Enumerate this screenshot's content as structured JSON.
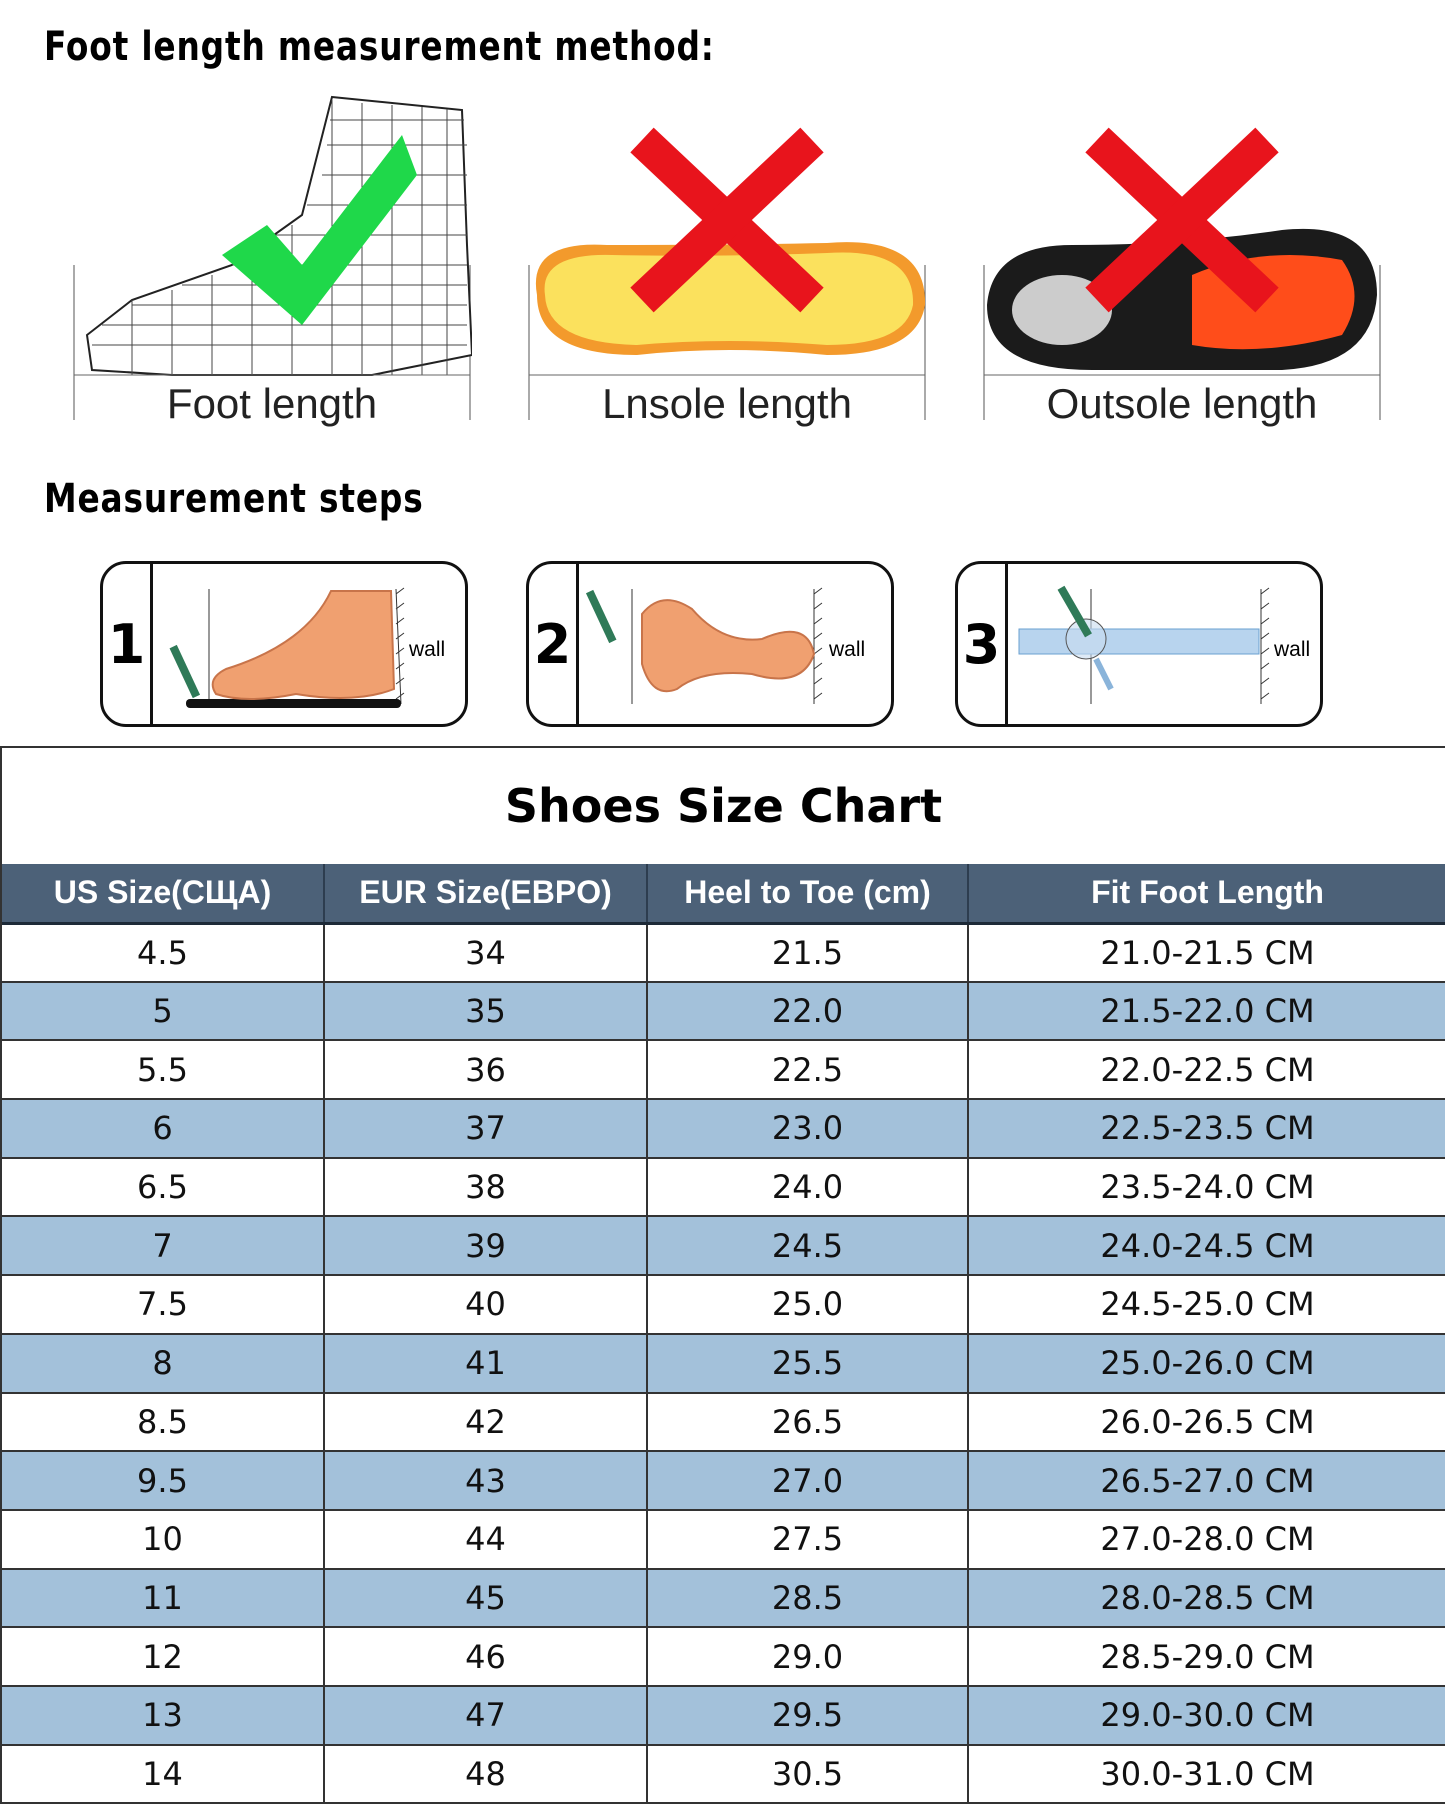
{
  "method_title": "Foot length measurement method:",
  "methods": [
    {
      "label": "Foot length",
      "mark": "check-icon",
      "mark_color": "#1fd84a"
    },
    {
      "label": "Lnsole length",
      "mark": "cross-icon",
      "mark_color": "#e8141c"
    },
    {
      "label": "Outsole length",
      "mark": "cross-icon",
      "mark_color": "#e8141c"
    }
  ],
  "steps_title": "Measurement steps",
  "steps": [
    {
      "number": "1",
      "wall": "wall"
    },
    {
      "number": "2",
      "wall": "wall"
    },
    {
      "number": "3",
      "wall": "wall"
    }
  ],
  "chart": {
    "title": "Shoes Size Chart",
    "headers": [
      "US Size(СЩA)",
      "EUR Size(EBPO)",
      "Heel to Toe (cm)",
      "Fit Foot Length"
    ],
    "rows": [
      [
        "4.5",
        "34",
        "21.5",
        "21.0-21.5 CM"
      ],
      [
        "5",
        "35",
        "22.0",
        "21.5-22.0 CM"
      ],
      [
        "5.5",
        "36",
        "22.5",
        "22.0-22.5 CM"
      ],
      [
        "6",
        "37",
        "23.0",
        "22.5-23.5 CM"
      ],
      [
        "6.5",
        "38",
        "24.0",
        "23.5-24.0 CM"
      ],
      [
        "7",
        "39",
        "24.5",
        "24.0-24.5 CM"
      ],
      [
        "7.5",
        "40",
        "25.0",
        "24.5-25.0 CM"
      ],
      [
        "8",
        "41",
        "25.5",
        "25.0-26.0 CM"
      ],
      [
        "8.5",
        "42",
        "26.5",
        "26.0-26.5 CM"
      ],
      [
        "9.5",
        "43",
        "27.0",
        "26.5-27.0 CM"
      ],
      [
        "10",
        "44",
        "27.5",
        "27.0-28.0 CM"
      ],
      [
        "11",
        "45",
        "28.5",
        "28.0-28.5 CM"
      ],
      [
        "12",
        "46",
        "29.0",
        "28.5-29.0 CM"
      ],
      [
        "13",
        "47",
        "29.5",
        "29.0-30.0 CM"
      ],
      [
        "14",
        "48",
        "30.5",
        "30.0-31.0 CM"
      ]
    ],
    "colors": {
      "header": "#4c6178",
      "alt_row": "#a3c1da"
    }
  }
}
